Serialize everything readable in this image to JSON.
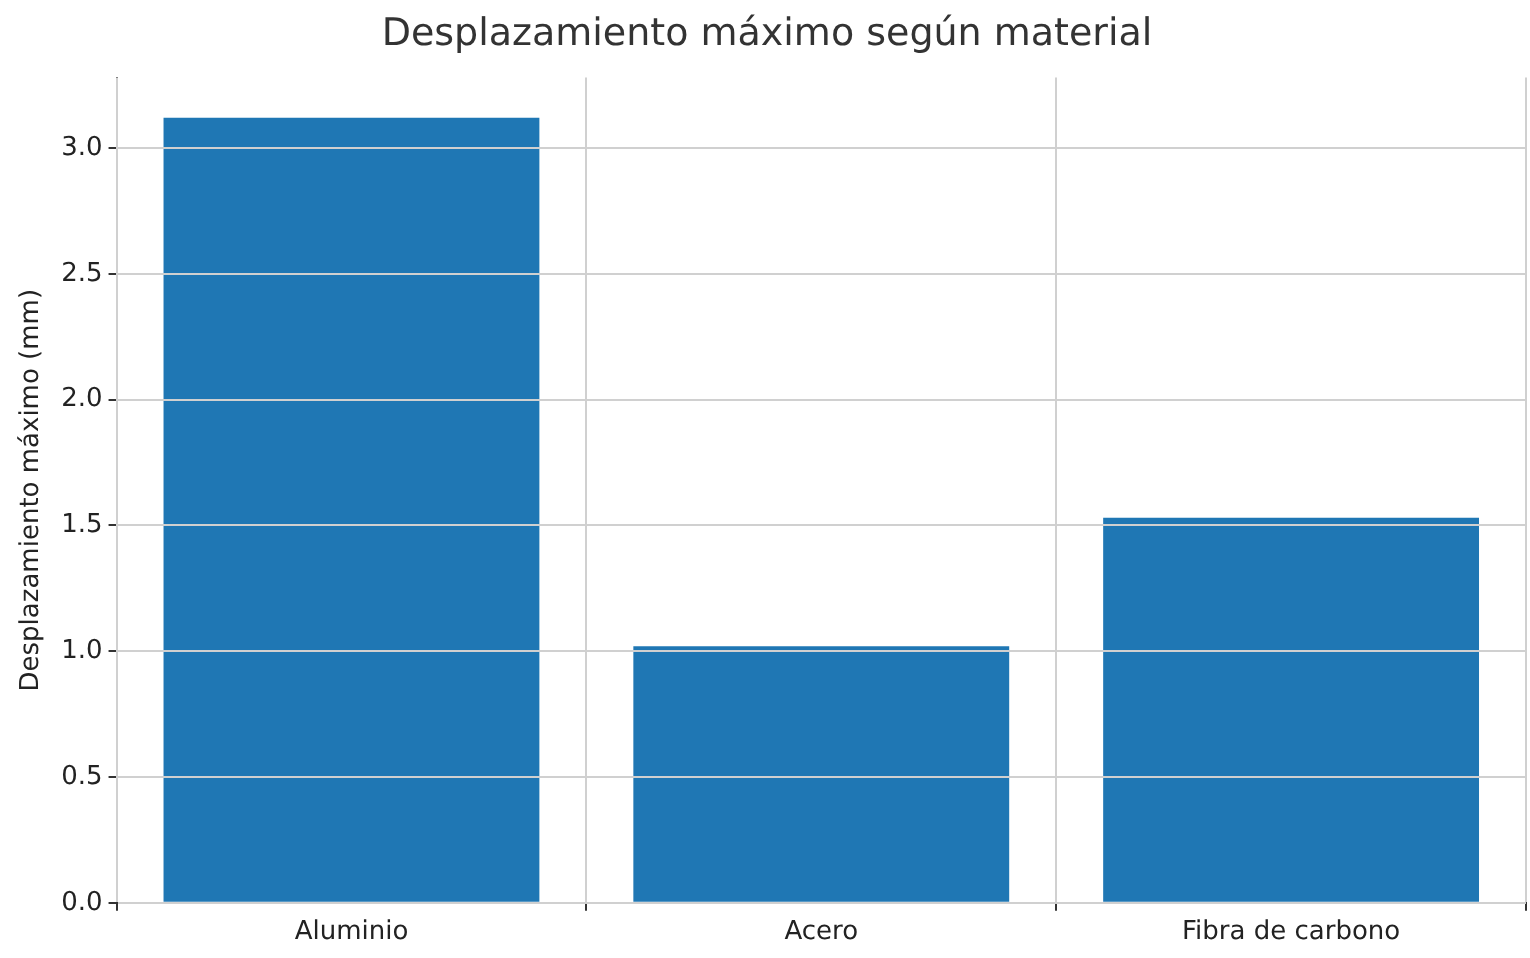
{
  "chart_data": {
    "type": "bar",
    "title": "Desplazamiento máximo según material",
    "ylabel": "Desplazamiento máximo (mm)",
    "categories": [
      "Aluminio",
      "Acero",
      "Fibra de carbono"
    ],
    "values": [
      3.12,
      1.02,
      1.53
    ],
    "color": "#1f77b4",
    "ylim": [
      0,
      3.28
    ],
    "yticks": [
      {
        "value": 0,
        "label": "0.0"
      },
      {
        "value": 0.5,
        "label": "0.5"
      },
      {
        "value": 1,
        "label": "1.0"
      },
      {
        "value": 1.5,
        "label": "1.5"
      },
      {
        "value": 2,
        "label": "2.0"
      },
      {
        "value": 2.5,
        "label": "2.5"
      },
      {
        "value": 3,
        "label": "3.0"
      }
    ],
    "grid": true
  }
}
